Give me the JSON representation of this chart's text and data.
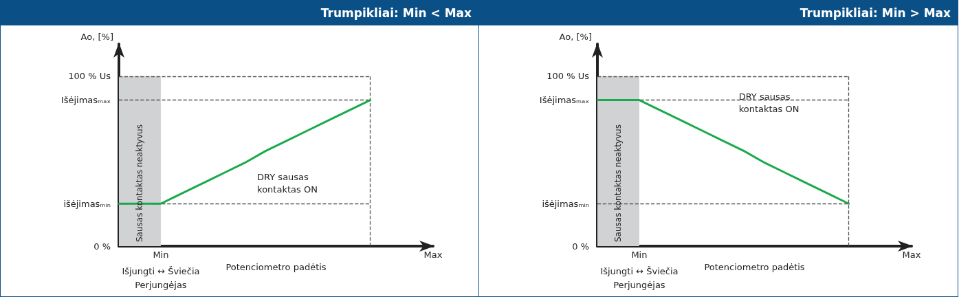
{
  "chart_data": [
    {
      "type": "line",
      "title": "Trumpikliai: Min < Max",
      "ylabel": "Ao, [%]",
      "xlabel": "Potenciometro padėtis",
      "categories": [
        null,
        null,
        "Min",
        null,
        null,
        null,
        null,
        null,
        null,
        null,
        null,
        null,
        null,
        null,
        null,
        "Max"
      ],
      "ylim": [
        0,
        119
      ],
      "yticks": [
        {
          "value": 0,
          "label": "0 %"
        },
        {
          "value": 25,
          "label": "išėjimasₘᵢₙ"
        },
        {
          "value": 86,
          "label": "Išėjimasₘₐₓ"
        },
        {
          "value": 100,
          "label": "100 % Us"
        }
      ],
      "marker": "none",
      "series": [
        {
          "color": "#1aaa4b",
          "values": [
            25,
            25,
            25,
            31,
            37,
            43,
            49,
            56,
            62,
            68,
            74,
            80,
            86,
            null,
            null,
            null
          ]
        }
      ],
      "ref_lines": [
        {
          "axis": "y",
          "value": 100,
          "color": "#555555",
          "line_style": "dashed"
        },
        {
          "axis": "y",
          "value": 86,
          "color": "#555555",
          "line_style": "dashed"
        },
        {
          "axis": "y",
          "value": 25,
          "color": "#555555",
          "line_style": "dashed"
        }
      ],
      "annotations": [
        "Sausas kontaktas neaktyvus",
        "DRY sausas\nkontaktas ON",
        "Išjungti ↔ Šviečia",
        "Perjungėjas"
      ]
    },
    {
      "type": "line",
      "title": "Trumpikliai: Min > Max",
      "ylabel": "Ao, [%]",
      "xlabel": "Potenciometro padėtis",
      "categories": [
        null,
        null,
        "Min",
        null,
        null,
        null,
        null,
        null,
        null,
        null,
        null,
        null,
        null,
        null,
        null,
        "Max"
      ],
      "ylim": [
        0,
        119
      ],
      "yticks": [
        {
          "value": 0,
          "label": "0 %"
        },
        {
          "value": 25,
          "label": "išėjimasₘᵢₙ"
        },
        {
          "value": 86,
          "label": "Išėjimasₘₐₓ"
        },
        {
          "value": 100,
          "label": "100 % Us"
        }
      ],
      "marker": "none",
      "series": [
        {
          "color": "#1aaa4b",
          "values": [
            86,
            86,
            86,
            80,
            74,
            68,
            62,
            56,
            49,
            43,
            37,
            31,
            25,
            null,
            null,
            null
          ]
        }
      ],
      "ref_lines": [
        {
          "axis": "y",
          "value": 100,
          "color": "#555555",
          "line_style": "dashed"
        },
        {
          "axis": "y",
          "value": 86,
          "color": "#555555",
          "line_style": "dashed"
        },
        {
          "axis": "y",
          "value": 25,
          "color": "#555555",
          "line_style": "dashed"
        }
      ],
      "annotations": [
        "Sausas kontaktas neaktyvus",
        "DRY sausas\nkontaktas ON",
        "Išjungti ↔ Šviečia",
        "Perjungėjas"
      ]
    }
  ]
}
